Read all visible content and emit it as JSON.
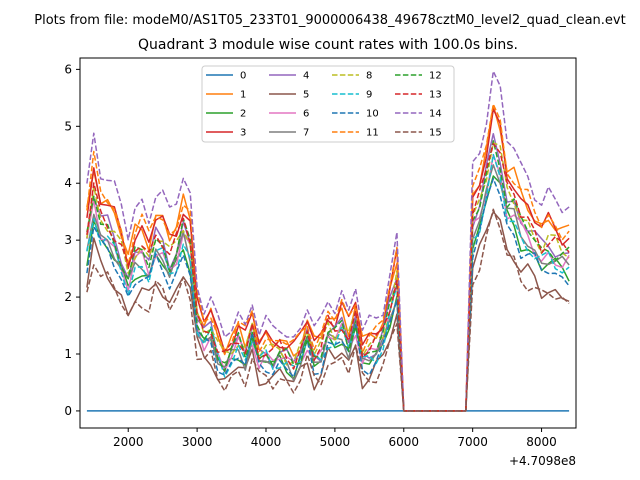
{
  "figure": {
    "suptitle": "Plots from file: modeM0/AS1T05_233T01_9000006438_49678cztM0_level2_quad_clean.evt"
  },
  "chart_data": {
    "type": "line",
    "title": "Quadrant 3 module wise count rates with 100.0s bins.",
    "xlabel": "",
    "ylabel": "",
    "x_offset_label": "+4.7098e8",
    "xlim": [
      1300,
      8500
    ],
    "ylim": [
      -0.3,
      6.2
    ],
    "xticks": [
      2000,
      3000,
      4000,
      5000,
      6000,
      7000,
      8000
    ],
    "yticks": [
      0,
      1,
      2,
      3,
      4,
      5,
      6
    ],
    "xtick_labels": [
      "2000",
      "3000",
      "4000",
      "5000",
      "6000",
      "7000",
      "8000"
    ],
    "ytick_labels": [
      "0",
      "1",
      "2",
      "3",
      "4",
      "5",
      "6"
    ],
    "legend": {
      "position": "top-center",
      "ncols": 4
    },
    "x": [
      1400,
      1500,
      1600,
      1700,
      1800,
      1900,
      2000,
      2100,
      2200,
      2300,
      2400,
      2500,
      2600,
      2700,
      2800,
      2900,
      3000,
      3100,
      3200,
      3300,
      3400,
      3500,
      3600,
      3700,
      3800,
      3900,
      4000,
      4100,
      4200,
      4300,
      4400,
      4500,
      4600,
      4700,
      4800,
      4900,
      5000,
      5100,
      5200,
      5300,
      5400,
      5500,
      5600,
      5700,
      5800,
      5900,
      6000,
      6100,
      6200,
      6300,
      6400,
      6500,
      6600,
      6700,
      6800,
      6900,
      7000,
      7100,
      7200,
      7300,
      7400,
      7500,
      7600,
      7700,
      7800,
      7900,
      8000,
      8100,
      8200,
      8300,
      8400
    ],
    "gap_mask": [
      1,
      1,
      1,
      1,
      1,
      1,
      1,
      1,
      1,
      1,
      1,
      1,
      1,
      1,
      1,
      1,
      1,
      1,
      1,
      1,
      1,
      1,
      1,
      1,
      1,
      1,
      1,
      1,
      1,
      1,
      1,
      1,
      1,
      1,
      1,
      1,
      1,
      1,
      1,
      1,
      1,
      1,
      1,
      1,
      1,
      1,
      0,
      0,
      0,
      0,
      0,
      0,
      0,
      0,
      0,
      0,
      1,
      1,
      1,
      1,
      1,
      1,
      1,
      1,
      1,
      1,
      1,
      1,
      1,
      1,
      1
    ],
    "template": [
      3.0,
      3.8,
      3.3,
      3.2,
      3.0,
      2.7,
      2.3,
      2.7,
      2.8,
      2.6,
      3.0,
      2.9,
      2.6,
      2.8,
      3.2,
      2.9,
      1.6,
      1.3,
      1.4,
      1.0,
      0.8,
      1.0,
      1.2,
      1.0,
      1.4,
      0.9,
      1.0,
      0.9,
      1.0,
      0.9,
      0.8,
      1.0,
      1.3,
      0.9,
      1.0,
      1.4,
      1.3,
      1.5,
      1.2,
      1.6,
      0.9,
      1.0,
      1.1,
      1.3,
      1.8,
      2.3,
      0,
      0,
      0,
      0,
      0,
      0,
      0,
      0,
      0,
      0,
      3.3,
      3.6,
      4.1,
      4.7,
      4.4,
      3.7,
      3.6,
      3.3,
      3.2,
      3.0,
      2.8,
      2.9,
      2.8,
      2.7,
      2.7
    ],
    "series": [
      {
        "name": "0",
        "color": "#1f77b4",
        "dash": "solid",
        "scale": 0.0,
        "shift": 0.0
      },
      {
        "name": "1",
        "color": "#ff7f0e",
        "dash": "solid",
        "scale": 1.1,
        "shift": 0.15
      },
      {
        "name": "2",
        "color": "#2ca02c",
        "dash": "solid",
        "scale": 0.9,
        "shift": 0.0
      },
      {
        "name": "3",
        "color": "#d62728",
        "dash": "solid",
        "scale": 1.05,
        "shift": 0.25
      },
      {
        "name": "4",
        "color": "#9467bd",
        "dash": "solid",
        "scale": 1.0,
        "shift": 0.05
      },
      {
        "name": "5",
        "color": "#8c564b",
        "dash": "solid",
        "scale": 0.8,
        "shift": -0.15
      },
      {
        "name": "6",
        "color": "#e377c2",
        "dash": "solid",
        "scale": 0.95,
        "shift": 0.0
      },
      {
        "name": "7",
        "color": "#7f7f7f",
        "dash": "solid",
        "scale": 0.95,
        "shift": -0.05
      },
      {
        "name": "8",
        "color": "#bcbd22",
        "dash": "dashed",
        "scale": 1.0,
        "shift": 0.1
      },
      {
        "name": "9",
        "color": "#17becf",
        "dash": "dashed",
        "scale": 0.92,
        "shift": 0.0
      },
      {
        "name": "10",
        "color": "#1f77b4",
        "dash": "dashed",
        "scale": 0.88,
        "shift": -0.05
      },
      {
        "name": "11",
        "color": "#ff7f0e",
        "dash": "dashed",
        "scale": 1.1,
        "shift": 0.2
      },
      {
        "name": "12",
        "color": "#2ca02c",
        "dash": "dashed",
        "scale": 1.0,
        "shift": 0.0
      },
      {
        "name": "13",
        "color": "#d62728",
        "dash": "dashed",
        "scale": 1.03,
        "shift": 0.05
      },
      {
        "name": "14",
        "color": "#9467bd",
        "dash": "dashed",
        "scale": 1.2,
        "shift": 0.3
      },
      {
        "name": "15",
        "color": "#8c564b",
        "dash": "dashed",
        "scale": 0.78,
        "shift": -0.2
      }
    ]
  }
}
